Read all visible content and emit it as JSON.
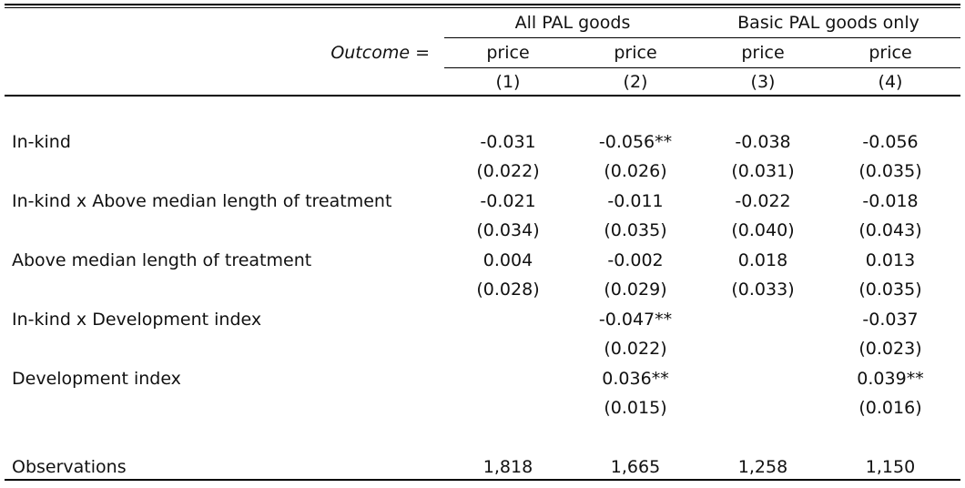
{
  "table": {
    "group_headers": [
      "All PAL goods",
      "Basic PAL goods only"
    ],
    "outcome_label": "Outcome =",
    "outcomes": [
      "price",
      "price",
      "price",
      "price"
    ],
    "col_numbers": [
      "(1)",
      "(2)",
      "(3)",
      "(4)"
    ],
    "rows": [
      {
        "label": "In-kind",
        "coef": [
          "-0.031",
          "-0.056**",
          "-0.038",
          "-0.056"
        ],
        "se": [
          "(0.022)",
          "(0.026)",
          "(0.031)",
          "(0.035)"
        ]
      },
      {
        "label": "In-kind x Above median length of treatment",
        "coef": [
          "-0.021",
          "-0.011",
          "-0.022",
          "-0.018"
        ],
        "se": [
          "(0.034)",
          "(0.035)",
          "(0.040)",
          "(0.043)"
        ]
      },
      {
        "label": "Above median length of treatment",
        "coef": [
          "0.004",
          "-0.002",
          "0.018",
          "0.013"
        ],
        "se": [
          "(0.028)",
          "(0.029)",
          "(0.033)",
          "(0.035)"
        ]
      },
      {
        "label": "In-kind x Development index",
        "coef": [
          "",
          "-0.047**",
          "",
          "-0.037"
        ],
        "se": [
          "",
          "(0.022)",
          "",
          "(0.023)"
        ]
      },
      {
        "label": "Development index",
        "coef": [
          "",
          "0.036**",
          "",
          "0.039**"
        ],
        "se": [
          "",
          "(0.015)",
          "",
          "(0.016)"
        ]
      }
    ],
    "observations": {
      "label": "Observations",
      "values": [
        "1,818",
        "1,665",
        "1,258",
        "1,150"
      ]
    }
  }
}
